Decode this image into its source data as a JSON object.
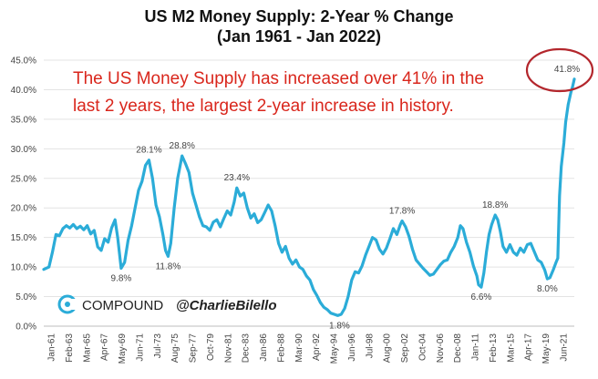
{
  "chart_data": {
    "type": "line",
    "title_line1": "US M2 Money Supply: 2-Year % Change",
    "title_line2": "(Jan 1961 - Jan 2022)",
    "xlabel": "",
    "ylabel": "",
    "ylim": [
      0,
      45
    ],
    "yticks": [
      "0.0%",
      "5.0%",
      "10.0%",
      "15.0%",
      "20.0%",
      "25.0%",
      "30.0%",
      "35.0%",
      "40.0%",
      "45.0%"
    ],
    "xticks": [
      "Jan-61",
      "Feb-63",
      "Mar-65",
      "Apr-67",
      "May-69",
      "Jun-71",
      "Jul-73",
      "Aug-75",
      "Sep-77",
      "Oct-79",
      "Nov-81",
      "Dec-83",
      "Jan-86",
      "Feb-88",
      "Mar-90",
      "Apr-92",
      "May-94",
      "Jun-96",
      "Jul-98",
      "Aug-00",
      "Sep-02",
      "Oct-04",
      "Nov-06",
      "Dec-08",
      "Jan-11",
      "Feb-13",
      "Mar-15",
      "Apr-17",
      "May-19",
      "Jun-21"
    ],
    "grid": true,
    "line_color": "#2bacd8",
    "annotation": {
      "line1": "The US Money Supply has increased over 41% in the",
      "line2": "last 2 years, the largest 2-year increase in history.",
      "color": "#d9261c"
    },
    "branding": {
      "name": "COMPOUND",
      "handle": "@CharlieBilello"
    },
    "labels": [
      {
        "x": 1969.9,
        "y": 9.8,
        "text": "9.8%"
      },
      {
        "x": 1973.1,
        "y": 28.1,
        "text": "28.1%"
      },
      {
        "x": 1975.3,
        "y": 11.8,
        "text": "11.8%"
      },
      {
        "x": 1976.9,
        "y": 28.8,
        "text": "28.8%"
      },
      {
        "x": 1983.2,
        "y": 23.4,
        "text": "23.4%"
      },
      {
        "x": 1995.0,
        "y": 1.8,
        "text": "1.8%"
      },
      {
        "x": 2002.2,
        "y": 17.8,
        "text": "17.8%"
      },
      {
        "x": 2011.3,
        "y": 6.6,
        "text": "6.6%"
      },
      {
        "x": 2012.9,
        "y": 18.8,
        "text": "18.8%"
      },
      {
        "x": 2018.9,
        "y": 8.0,
        "text": "8.0%"
      },
      {
        "x": 2022.0,
        "y": 41.8,
        "text": "41.8%"
      }
    ],
    "series": [
      {
        "points": [
          [
            1961.0,
            9.6
          ],
          [
            1961.6,
            10.0
          ],
          [
            1962.0,
            12.5
          ],
          [
            1962.4,
            15.5
          ],
          [
            1962.8,
            15.3
          ],
          [
            1963.2,
            16.5
          ],
          [
            1963.6,
            17.0
          ],
          [
            1964.0,
            16.6
          ],
          [
            1964.4,
            17.2
          ],
          [
            1964.8,
            16.5
          ],
          [
            1965.2,
            16.9
          ],
          [
            1965.6,
            16.3
          ],
          [
            1966.0,
            17.0
          ],
          [
            1966.4,
            15.6
          ],
          [
            1966.8,
            16.2
          ],
          [
            1967.2,
            13.4
          ],
          [
            1967.6,
            12.8
          ],
          [
            1968.0,
            14.8
          ],
          [
            1968.4,
            14.2
          ],
          [
            1968.8,
            16.6
          ],
          [
            1969.2,
            18.0
          ],
          [
            1969.5,
            15.0
          ],
          [
            1969.9,
            9.8
          ],
          [
            1970.3,
            10.8
          ],
          [
            1970.7,
            14.5
          ],
          [
            1971.1,
            17.0
          ],
          [
            1971.5,
            20.0
          ],
          [
            1971.9,
            23.0
          ],
          [
            1972.3,
            24.5
          ],
          [
            1972.7,
            27.2
          ],
          [
            1973.1,
            28.1
          ],
          [
            1973.5,
            25.0
          ],
          [
            1973.9,
            20.5
          ],
          [
            1974.3,
            18.5
          ],
          [
            1974.7,
            15.5
          ],
          [
            1975.0,
            12.8
          ],
          [
            1975.3,
            11.8
          ],
          [
            1975.6,
            14.0
          ],
          [
            1976.0,
            20.0
          ],
          [
            1976.4,
            25.0
          ],
          [
            1976.9,
            28.8
          ],
          [
            1977.3,
            27.5
          ],
          [
            1977.7,
            26.0
          ],
          [
            1978.1,
            22.5
          ],
          [
            1978.5,
            20.5
          ],
          [
            1978.9,
            18.5
          ],
          [
            1979.3,
            17.0
          ],
          [
            1979.7,
            16.8
          ],
          [
            1980.1,
            16.2
          ],
          [
            1980.5,
            17.6
          ],
          [
            1980.9,
            18.0
          ],
          [
            1981.3,
            16.8
          ],
          [
            1981.7,
            18.2
          ],
          [
            1982.1,
            19.5
          ],
          [
            1982.5,
            18.8
          ],
          [
            1982.9,
            21.0
          ],
          [
            1983.2,
            23.4
          ],
          [
            1983.6,
            22.0
          ],
          [
            1984.0,
            22.5
          ],
          [
            1984.4,
            20.0
          ],
          [
            1984.8,
            18.3
          ],
          [
            1985.2,
            19.0
          ],
          [
            1985.6,
            17.5
          ],
          [
            1986.0,
            18.0
          ],
          [
            1986.4,
            19.2
          ],
          [
            1986.8,
            20.5
          ],
          [
            1987.2,
            19.5
          ],
          [
            1987.6,
            17.0
          ],
          [
            1988.0,
            14.0
          ],
          [
            1988.4,
            12.5
          ],
          [
            1988.8,
            13.5
          ],
          [
            1989.2,
            11.5
          ],
          [
            1989.6,
            10.5
          ],
          [
            1990.0,
            11.2
          ],
          [
            1990.4,
            10.0
          ],
          [
            1990.8,
            9.6
          ],
          [
            1991.2,
            8.5
          ],
          [
            1991.6,
            7.8
          ],
          [
            1992.0,
            6.2
          ],
          [
            1992.4,
            5.2
          ],
          [
            1992.8,
            4.0
          ],
          [
            1993.2,
            3.2
          ],
          [
            1993.6,
            2.8
          ],
          [
            1994.0,
            2.2
          ],
          [
            1994.4,
            2.0
          ],
          [
            1994.8,
            1.8
          ],
          [
            1995.2,
            2.0
          ],
          [
            1995.6,
            3.0
          ],
          [
            1996.0,
            5.0
          ],
          [
            1996.4,
            7.8
          ],
          [
            1996.8,
            9.2
          ],
          [
            1997.2,
            9.0
          ],
          [
            1997.6,
            10.2
          ],
          [
            1998.0,
            12.0
          ],
          [
            1998.4,
            13.5
          ],
          [
            1998.8,
            15.0
          ],
          [
            1999.2,
            14.6
          ],
          [
            1999.6,
            13.0
          ],
          [
            2000.0,
            12.2
          ],
          [
            2000.4,
            13.2
          ],
          [
            2000.8,
            14.8
          ],
          [
            2001.2,
            16.5
          ],
          [
            2001.6,
            15.5
          ],
          [
            2002.0,
            17.2
          ],
          [
            2002.2,
            17.8
          ],
          [
            2002.6,
            16.8
          ],
          [
            2003.0,
            15.2
          ],
          [
            2003.4,
            13.0
          ],
          [
            2003.8,
            11.2
          ],
          [
            2004.2,
            10.5
          ],
          [
            2004.6,
            9.8
          ],
          [
            2005.0,
            9.2
          ],
          [
            2005.4,
            8.6
          ],
          [
            2005.8,
            8.8
          ],
          [
            2006.2,
            9.6
          ],
          [
            2006.6,
            10.4
          ],
          [
            2007.0,
            11.0
          ],
          [
            2007.4,
            11.2
          ],
          [
            2007.8,
            12.5
          ],
          [
            2008.2,
            13.5
          ],
          [
            2008.6,
            15.0
          ],
          [
            2008.9,
            17.0
          ],
          [
            2009.2,
            16.5
          ],
          [
            2009.6,
            14.2
          ],
          [
            2010.0,
            12.5
          ],
          [
            2010.4,
            10.2
          ],
          [
            2010.8,
            8.5
          ],
          [
            2011.0,
            7.0
          ],
          [
            2011.3,
            6.6
          ],
          [
            2011.6,
            9.0
          ],
          [
            2011.9,
            12.5
          ],
          [
            2012.2,
            15.5
          ],
          [
            2012.5,
            17.2
          ],
          [
            2012.9,
            18.8
          ],
          [
            2013.2,
            18.0
          ],
          [
            2013.5,
            16.0
          ],
          [
            2013.8,
            13.5
          ],
          [
            2014.2,
            12.5
          ],
          [
            2014.6,
            13.8
          ],
          [
            2015.0,
            12.5
          ],
          [
            2015.4,
            12.0
          ],
          [
            2015.8,
            13.2
          ],
          [
            2016.2,
            12.5
          ],
          [
            2016.6,
            13.8
          ],
          [
            2017.0,
            14.0
          ],
          [
            2017.4,
            12.6
          ],
          [
            2017.8,
            11.2
          ],
          [
            2018.2,
            10.8
          ],
          [
            2018.6,
            9.5
          ],
          [
            2018.9,
            8.0
          ],
          [
            2019.2,
            8.2
          ],
          [
            2019.6,
            9.6
          ],
          [
            2019.9,
            10.8
          ],
          [
            2020.1,
            11.5
          ],
          [
            2020.3,
            22.0
          ],
          [
            2020.5,
            27.0
          ],
          [
            2020.8,
            31.0
          ],
          [
            2021.0,
            34.5
          ],
          [
            2021.3,
            37.5
          ],
          [
            2021.6,
            39.5
          ],
          [
            2021.8,
            40.5
          ],
          [
            2022.0,
            41.8
          ]
        ]
      }
    ]
  }
}
